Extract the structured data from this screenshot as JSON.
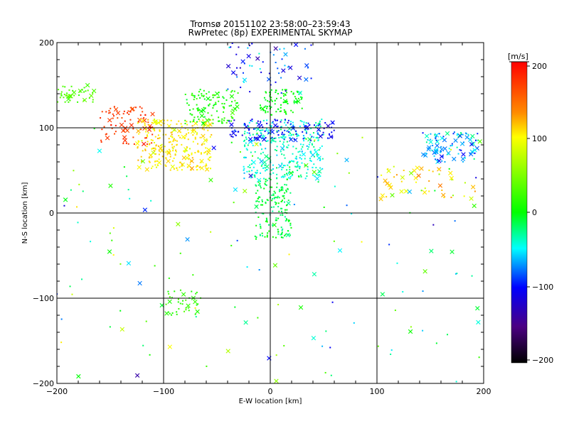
{
  "chart_data": {
    "type": "scatter",
    "title": "Tromsø 20151102 23:58:00–23:59:43",
    "subtitle": "RwPretec (8p) EXPERIMENTAL SKYMAP",
    "xlabel": "E-W location [km]",
    "ylabel": "N-S location [km]",
    "xlim": [
      -200,
      200
    ],
    "ylim": [
      -200,
      200
    ],
    "x_ticks": [
      "−200",
      "−100",
      "0",
      "100",
      "200"
    ],
    "y_ticks": [
      "−200",
      "−100",
      "0",
      "100",
      "200"
    ],
    "grid": true,
    "grid_lines": {
      "x": [
        -100,
        0,
        100
      ],
      "y": [
        -100,
        0,
        100
      ]
    },
    "colorbar": {
      "label": "[m/s]",
      "range": [
        -200,
        200
      ],
      "ticks": [
        "200",
        "100",
        "0",
        "−100",
        "−200"
      ],
      "colors": [
        "#ff0000",
        "#ffa500",
        "#ffff00",
        "#00ff00",
        "#00ffff",
        "#0000ff",
        "#000000"
      ]
    },
    "marker_types": [
      "dot",
      "cross"
    ],
    "clusters": [
      {
        "name": "northwest-green",
        "x": [
          -200,
          -165
        ],
        "y": [
          130,
          150
        ],
        "v_mean": 30,
        "v_spread": 15,
        "count": 45,
        "cross_frac": 0.3
      },
      {
        "name": "west-red-band",
        "x": [
          -160,
          -110
        ],
        "y": [
          80,
          125
        ],
        "v_mean": 180,
        "v_spread": 15,
        "count": 80,
        "cross_frac": 0.35
      },
      {
        "name": "yellow-orange",
        "x": [
          -125,
          -55
        ],
        "y": [
          50,
          110
        ],
        "v_mean": 110,
        "v_spread": 35,
        "count": 260,
        "cross_frac": 0.15
      },
      {
        "name": "green-north",
        "x": [
          -80,
          -30
        ],
        "y": [
          105,
          145
        ],
        "v_mean": 10,
        "v_spread": 25,
        "count": 120,
        "cross_frac": 0.1
      },
      {
        "name": "center-cyan",
        "x": [
          -25,
          50
        ],
        "y": [
          40,
          110
        ],
        "v_mean": -40,
        "v_spread": 30,
        "count": 320,
        "cross_frac": 0.08
      },
      {
        "name": "center-north-green",
        "x": [
          -10,
          30
        ],
        "y": [
          115,
          145
        ],
        "v_mean": 0,
        "v_spread": 15,
        "count": 90,
        "cross_frac": 0.05
      },
      {
        "name": "blue-band",
        "x": [
          -40,
          60
        ],
        "y": [
          85,
          110
        ],
        "v_mean": -100,
        "v_spread": 25,
        "count": 110,
        "cross_frac": 0.2
      },
      {
        "name": "center-column",
        "x": [
          -15,
          20
        ],
        "y": [
          -30,
          40
        ],
        "v_mean": -10,
        "v_spread": 25,
        "count": 170,
        "cross_frac": 0.05
      },
      {
        "name": "top-scatter",
        "x": [
          -40,
          40
        ],
        "y": [
          140,
          200
        ],
        "v_mean": -90,
        "v_spread": 60,
        "count": 60,
        "cross_frac": 0.35
      },
      {
        "name": "east-cluster",
        "x": [
          140,
          195
        ],
        "y": [
          60,
          95
        ],
        "v_mean": -60,
        "v_spread": 50,
        "count": 90,
        "cross_frac": 0.4
      },
      {
        "name": "east-mid",
        "x": [
          100,
          195
        ],
        "y": [
          15,
          55
        ],
        "v_mean": 110,
        "v_spread": 60,
        "count": 45,
        "cross_frac": 0.45
      },
      {
        "name": "south-green",
        "x": [
          -100,
          -65
        ],
        "y": [
          -120,
          -90
        ],
        "v_mean": 20,
        "v_spread": 15,
        "count": 40,
        "cross_frac": 0.15
      },
      {
        "name": "scattered",
        "x": [
          -200,
          200
        ],
        "y": [
          -200,
          100
        ],
        "v_mean": 0,
        "v_spread": 140,
        "count": 160,
        "cross_frac": 0.4
      }
    ]
  }
}
